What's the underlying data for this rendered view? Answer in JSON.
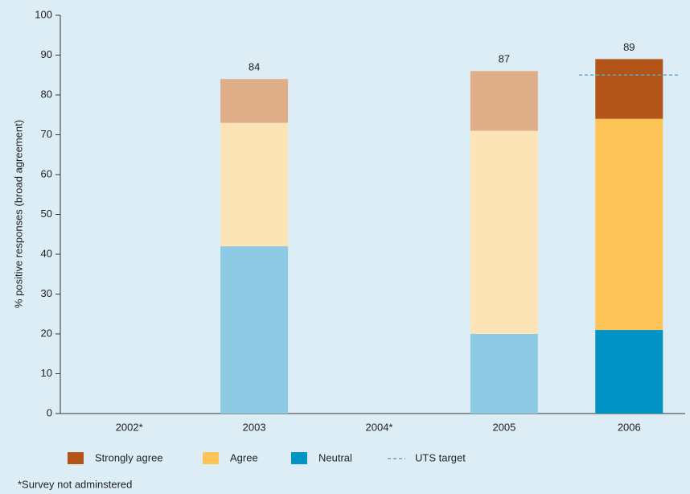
{
  "chart_data": {
    "type": "bar",
    "stacked": true,
    "y_label": "% positive responses (broad agreement)",
    "categories": [
      "2002*",
      "2003",
      "2004*",
      "2005",
      "2006"
    ],
    "series": [
      {
        "name": "Neutral",
        "color": "#0093c4",
        "point_colors": [
          null,
          "#8ecae4",
          null,
          "#8ecae4",
          "#0093c4"
        ],
        "values": [
          null,
          42,
          null,
          20,
          21
        ]
      },
      {
        "name": "Agree",
        "color": "#fec457",
        "point_colors": [
          null,
          "#fde4b6",
          null,
          "#fde4b6",
          "#fec457"
        ],
        "values": [
          null,
          31,
          null,
          51,
          53
        ]
      },
      {
        "name": "Strongly agree",
        "color": "#b35519",
        "point_colors": [
          null,
          "#e1ae8a",
          null,
          "#e1ae8a",
          "#b35519"
        ],
        "values": [
          null,
          11,
          null,
          15,
          15
        ]
      }
    ],
    "totals": [
      null,
      84,
      null,
      87,
      89
    ],
    "target": {
      "name": "UTS target",
      "value": 85,
      "color": "#5fa8d3"
    },
    "ylim": [
      0,
      100
    ],
    "yticks": [
      0,
      10,
      20,
      30,
      40,
      50,
      60,
      70,
      80,
      90,
      100
    ],
    "footnote": "*Survey not adminstered"
  }
}
